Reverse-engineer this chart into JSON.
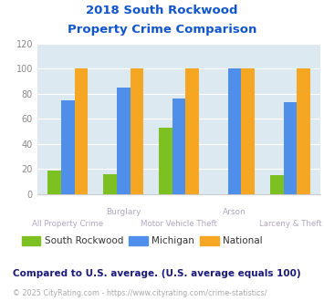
{
  "title_line1": "2018 South Rockwood",
  "title_line2": "Property Crime Comparison",
  "top_labels": [
    "",
    "Burglary",
    "",
    "Arson",
    ""
  ],
  "bot_labels": [
    "All Property Crime",
    "",
    "Motor Vehicle Theft",
    "",
    "Larceny & Theft"
  ],
  "south_rockwood": [
    19,
    16,
    53,
    0,
    15
  ],
  "michigan": [
    75,
    85,
    76,
    100,
    73
  ],
  "national": [
    100,
    100,
    100,
    100,
    100
  ],
  "colors": {
    "south_rockwood": "#7dc021",
    "michigan": "#4f8fea",
    "national": "#f5a623"
  },
  "ylim": [
    0,
    120
  ],
  "yticks": [
    0,
    20,
    40,
    60,
    80,
    100,
    120
  ],
  "plot_bg": "#dde9f0",
  "title_color": "#1155cc",
  "legend_labels": [
    "South Rockwood",
    "Michigan",
    "National"
  ],
  "note_text": "Compared to U.S. average. (U.S. average equals 100)",
  "footer_text": "© 2025 CityRating.com - https://www.cityrating.com/crime-statistics/",
  "note_color": "#1a1a7a",
  "footer_color": "#aaaaaa",
  "footer_link_color": "#4f8fea",
  "xlabel_top_color": "#b0a8c0",
  "xlabel_bot_color": "#b0a8c0"
}
